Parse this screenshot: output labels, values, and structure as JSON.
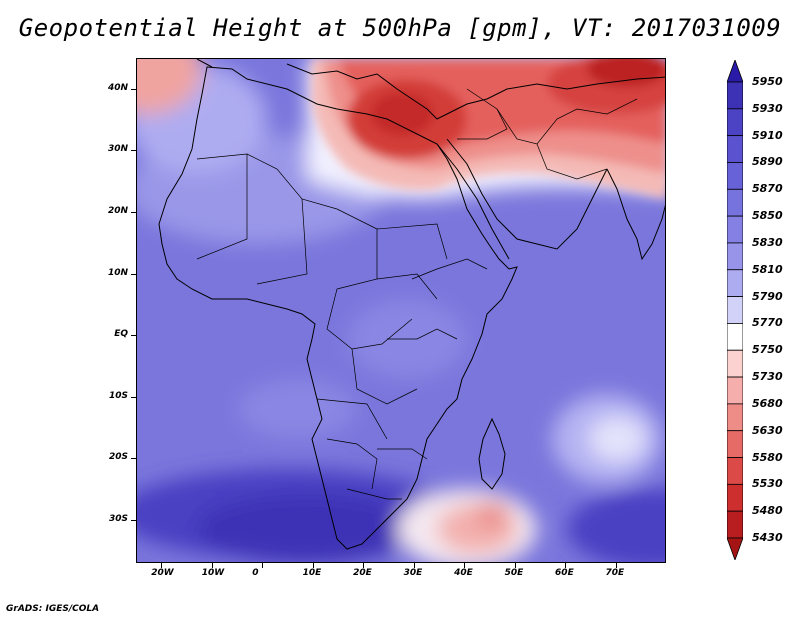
{
  "title": "Geopotential Height at 500hPa [gpm], VT: 2017031009",
  "footer": "GrADS: IGES/COLA",
  "map": {
    "region": "Africa",
    "lon_range": [
      -25,
      80
    ],
    "lat_range": [
      -37,
      45
    ],
    "lat_labels": [
      "40N",
      "30N",
      "20N",
      "10N",
      "EQ",
      "10S",
      "20S",
      "30S"
    ],
    "lat_values": [
      40,
      30,
      20,
      10,
      0,
      -10,
      -20,
      -30
    ],
    "lon_labels": [
      "20W",
      "10W",
      "0",
      "10E",
      "20E",
      "30E",
      "40E",
      "50E",
      "60E",
      "70E"
    ],
    "lon_values": [
      -20,
      -10,
      0,
      10,
      20,
      30,
      40,
      50,
      60,
      70
    ]
  },
  "colorbar": {
    "levels": [
      "5950",
      "5930",
      "5910",
      "5890",
      "5870",
      "5850",
      "5830",
      "5810",
      "5790",
      "5770",
      "5750",
      "5730",
      "5680",
      "5630",
      "5580",
      "5530",
      "5480",
      "5430"
    ],
    "colors": [
      "#2a1aa8",
      "#3d31b5",
      "#4b42c4",
      "#5a52cf",
      "#6862d8",
      "#7672de",
      "#8580e4",
      "#9794ea",
      "#aeacf1",
      "#d2d1f8",
      "#ffffff",
      "#fbd2d0",
      "#f5aeab",
      "#ee8c88",
      "#e66a66",
      "#dc4a47",
      "#cc2f2e",
      "#b81d1f",
      "#a51414"
    ]
  },
  "colors": {
    "ocean_base": "#7a78dd",
    "land_base": "#7c7ae0",
    "high_deep": "#3f36b8",
    "low_red": "#d8403c",
    "white_band": "#f4f4ff"
  }
}
